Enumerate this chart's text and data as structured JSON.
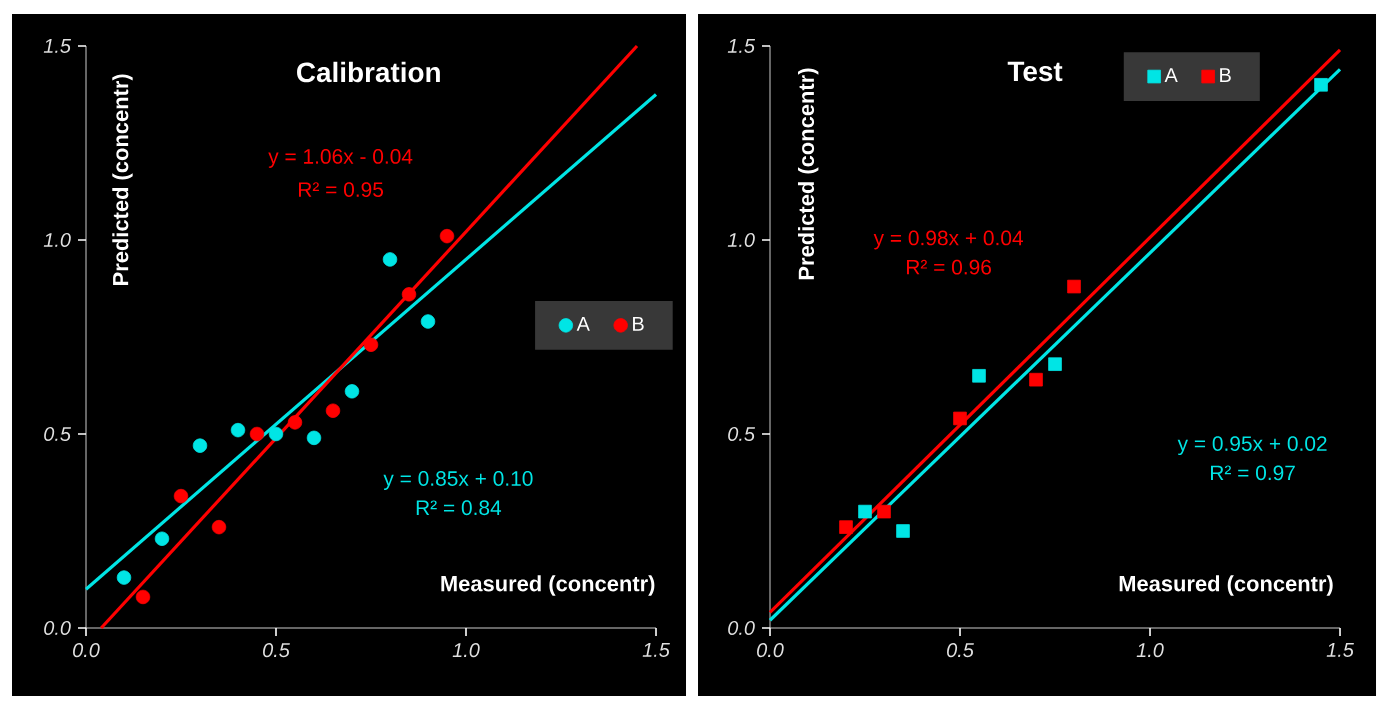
{
  "chart_data": [
    {
      "type": "scatter",
      "title": "Calibration",
      "xlabel": "Measured (concentr)",
      "ylabel": "Predicted (concentr)",
      "marker": "circle",
      "legend": "right",
      "xlim": [
        0,
        1.5
      ],
      "ylim": [
        0,
        1.5
      ],
      "xticks": [
        {
          "value": 0,
          "label": "0.0"
        },
        {
          "value": 0.5,
          "label": "0.5"
        },
        {
          "value": 1,
          "label": "1.0"
        },
        {
          "value": 1.5,
          "label": "1.5"
        }
      ],
      "yticks": [
        {
          "value": 0,
          "label": "0.0"
        },
        {
          "value": 0.5,
          "label": "0.5"
        },
        {
          "value": 1,
          "label": "1.0"
        },
        {
          "value": 1.5,
          "label": "1.5"
        }
      ],
      "series": [
        {
          "name": "A",
          "color": "#00e5e5",
          "x": [
            0.1,
            0.2,
            0.3,
            0.4,
            0.5,
            0.6,
            0.7,
            0.8,
            0.9
          ],
          "values": [
            0.13,
            0.23,
            0.47,
            0.51,
            0.5,
            0.49,
            0.61,
            0.95,
            0.79
          ]
        },
        {
          "name": "B",
          "color": "#ff0000",
          "x": [
            0.15,
            0.25,
            0.35,
            0.45,
            0.55,
            0.65,
            0.75,
            0.85,
            0.95
          ],
          "values": [
            0.08,
            0.34,
            0.26,
            0.5,
            0.53,
            0.56,
            0.73,
            0.86,
            1.01
          ]
        },
        {
          "type": "line",
          "marker": "none",
          "color": "#00e5e5",
          "x": [
            0,
            1.5
          ],
          "values": [
            0.1,
            1.375
          ]
        },
        {
          "type": "line",
          "marker": "none",
          "color": "#ff0000",
          "x": [
            0.04,
            1.45
          ],
          "values": [
            0,
            1.5
          ]
        }
      ],
      "annotations": [
        "y = 1.06x - 0.04",
        "R² = 0.95",
        "y = 0.85x + 0.10",
        "R² = 0.84"
      ]
    },
    {
      "type": "scatter",
      "title": "Test",
      "xlabel": "Measured (concentr)",
      "ylabel": "Predicted (concentr)",
      "marker": "square",
      "legend": "top right",
      "xlim": [
        0,
        1.5
      ],
      "ylim": [
        0,
        1.5
      ],
      "xticks": [
        {
          "value": 0,
          "label": "0.0"
        },
        {
          "value": 0.5,
          "label": "0.5"
        },
        {
          "value": 1,
          "label": "1.0"
        },
        {
          "value": 1.5,
          "label": "1.5"
        }
      ],
      "yticks": [
        {
          "value": 0,
          "label": "0.0"
        },
        {
          "value": 0.5,
          "label": "0.5"
        },
        {
          "value": 1,
          "label": "1.0"
        },
        {
          "value": 1.5,
          "label": "1.5"
        }
      ],
      "series": [
        {
          "name": "A",
          "color": "#00e5e5",
          "x": [
            0.25,
            0.35,
            0.55,
            0.75,
            1.45
          ],
          "values": [
            0.3,
            0.25,
            0.65,
            0.68,
            1.4
          ]
        },
        {
          "name": "B",
          "color": "#ff0000",
          "x": [
            0.2,
            0.3,
            0.5,
            0.7,
            0.8
          ],
          "values": [
            0.26,
            0.3,
            0.54,
            0.64,
            0.88
          ]
        },
        {
          "type": "line",
          "marker": "none",
          "color": "#00e5e5",
          "x": [
            0,
            1.5
          ],
          "values": [
            0.02,
            1.44
          ]
        },
        {
          "type": "line",
          "marker": "none",
          "color": "#ff0000",
          "x": [
            0,
            1.5
          ],
          "values": [
            0.04,
            1.49
          ]
        }
      ],
      "annotations": [
        "y = 0.98x + 0.04",
        "R² = 0.96",
        "y = 0.95x + 0.02",
        "R² = 0.97"
      ]
    }
  ]
}
